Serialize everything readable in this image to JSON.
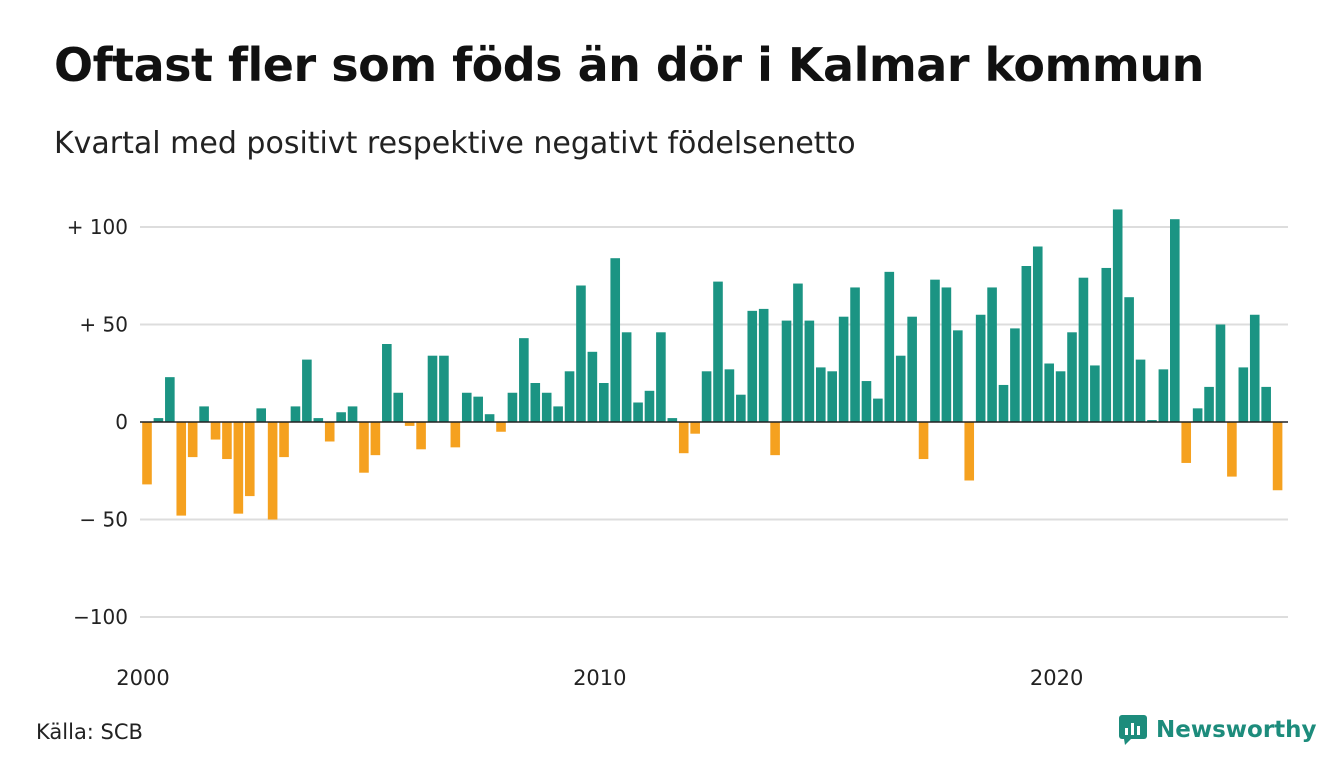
{
  "title": "Oftast fler som föds än dör i Kalmar kommun",
  "subtitle": "Kvartal med positivt respektive negativt födelsenetto",
  "source": "Källa: SCB",
  "brand": "Newsworthy",
  "colors": {
    "positive": "#1b9483",
    "negative": "#f5a11f",
    "grid": "#dddddd",
    "brand": "#1d8c7c"
  },
  "chart_data": {
    "type": "bar",
    "x_start": "2000-Q1",
    "y_ticks": [
      100,
      50,
      0,
      -50,
      -100
    ],
    "y_tick_labels": [
      "+ 100",
      "+  50",
      "0",
      "− 50",
      "−100"
    ],
    "x_tick_labels": [
      "2000",
      "2010",
      "2020"
    ],
    "ylim": [
      -100,
      100
    ],
    "grid": true,
    "values": [
      -32,
      2,
      23,
      -48,
      -18,
      8,
      -9,
      -19,
      -47,
      -38,
      7,
      -50,
      -18,
      8,
      32,
      2,
      -10,
      5,
      8,
      -26,
      -17,
      40,
      15,
      -2,
      -14,
      34,
      34,
      -13,
      15,
      13,
      4,
      -5,
      15,
      43,
      20,
      15,
      8,
      26,
      70,
      36,
      20,
      84,
      46,
      10,
      16,
      46,
      2,
      -16,
      -6,
      26,
      72,
      27,
      14,
      57,
      58,
      -17,
      52,
      71,
      52,
      28,
      26,
      54,
      69,
      21,
      12,
      77,
      34,
      54,
      -19,
      73,
      69,
      47,
      -30,
      55,
      69,
      19,
      48,
      80,
      90,
      30,
      26,
      46,
      74,
      29,
      79,
      109,
      64,
      32,
      1,
      27,
      104,
      -21,
      7,
      18,
      50,
      -28,
      28,
      55,
      18,
      -35
    ]
  }
}
